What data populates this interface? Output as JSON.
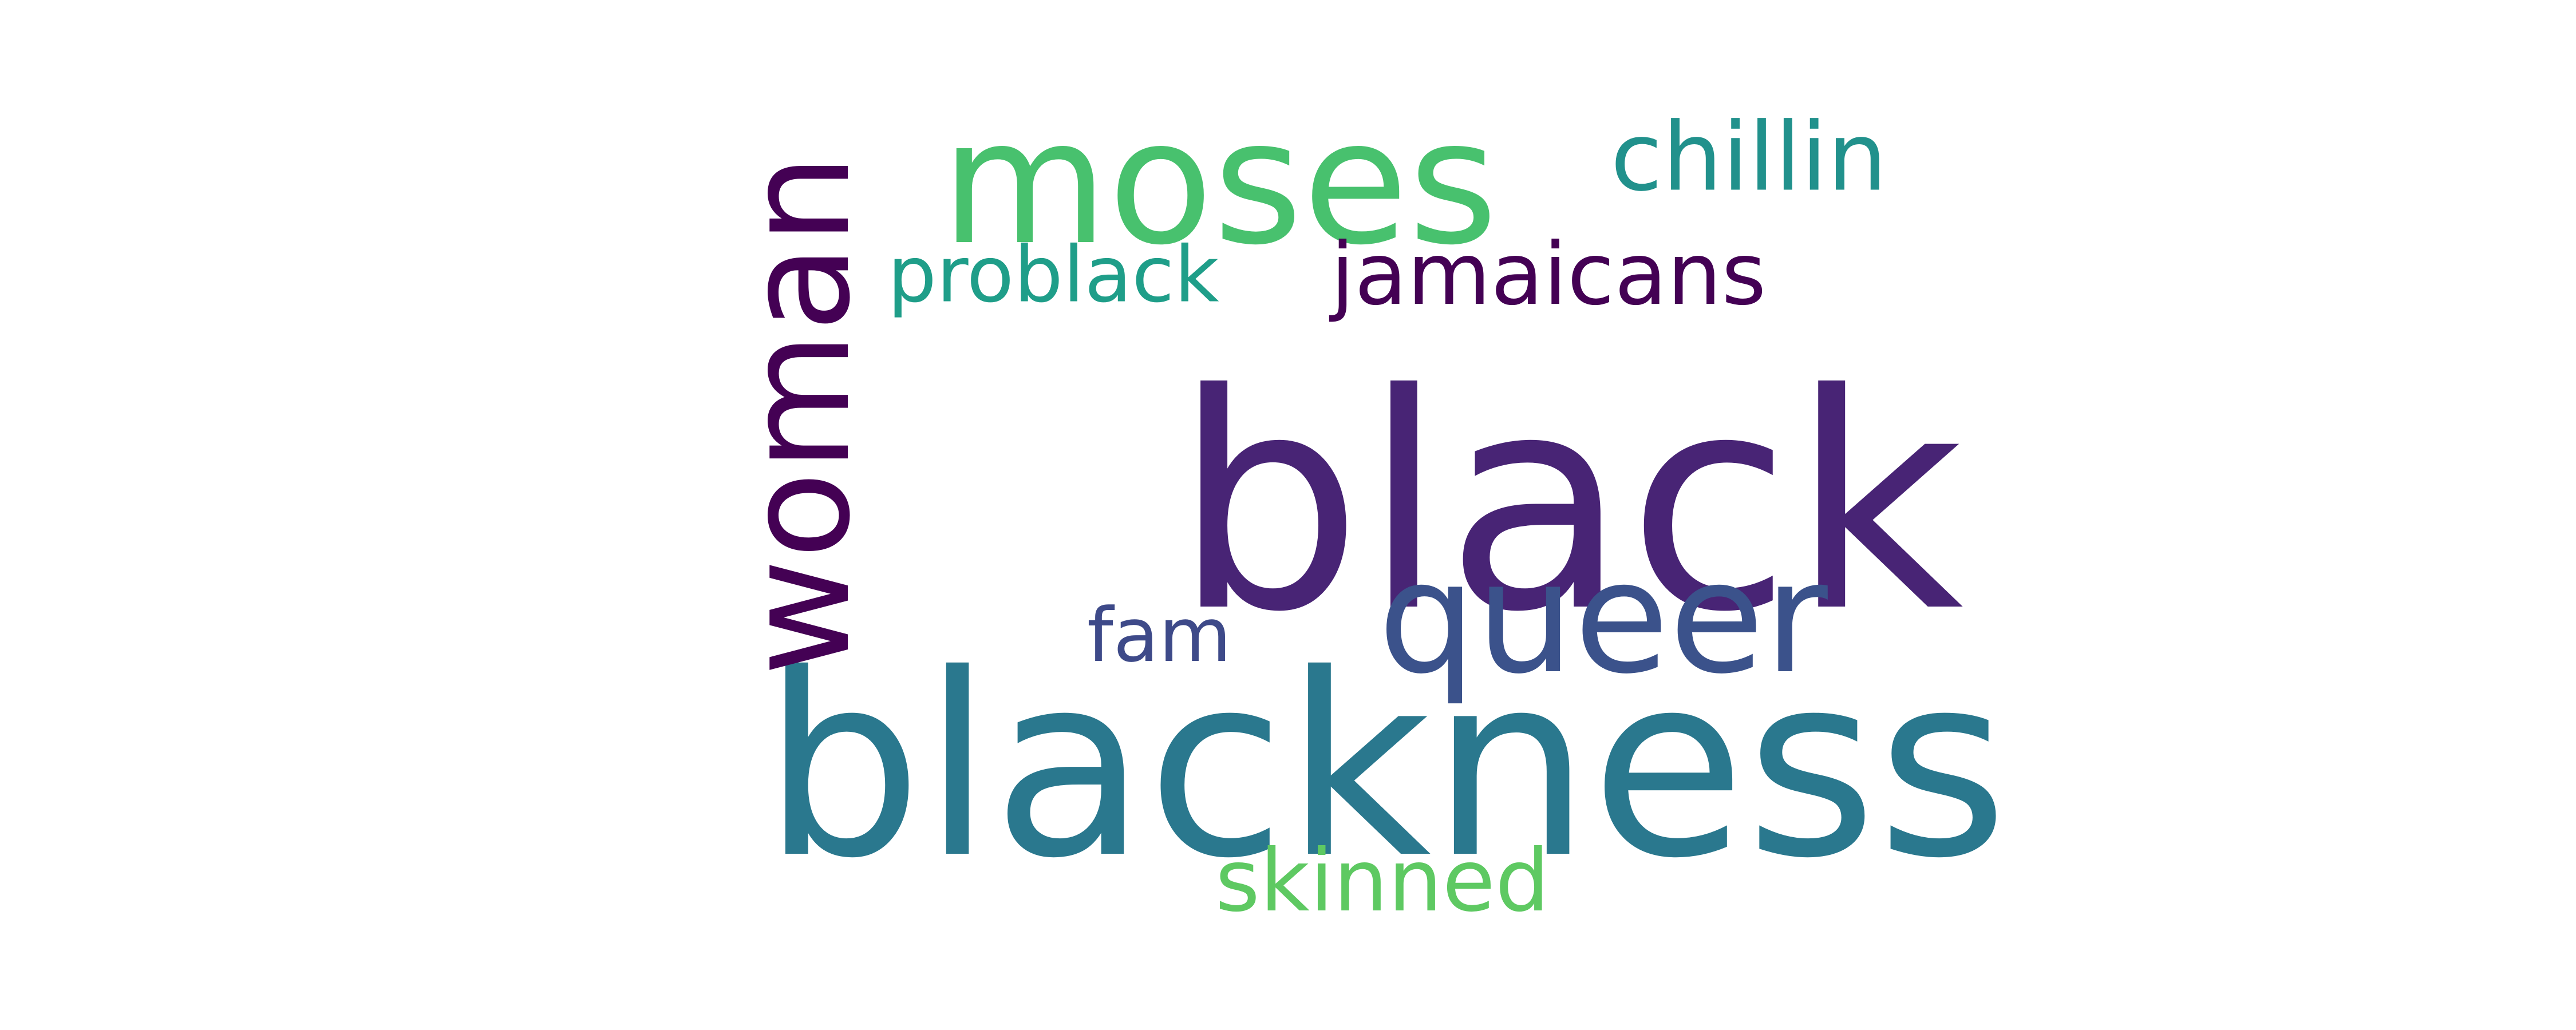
{
  "words": [
    {
      "text": "black",
      "color": "#482475",
      "rotation": 0
    },
    {
      "text": "blackness",
      "color": "#2a788e",
      "rotation": 0
    },
    {
      "text": "woman",
      "color": "#440154",
      "rotation": -90
    },
    {
      "text": "moses",
      "color": "#48c16e",
      "rotation": 0
    },
    {
      "text": "queer",
      "color": "#3b528b",
      "rotation": 0
    },
    {
      "text": "chillin",
      "color": "#21918c",
      "rotation": 0
    },
    {
      "text": "problack",
      "color": "#1f9e89",
      "rotation": 0
    },
    {
      "text": "jamaicans",
      "color": "#440154",
      "rotation": 0
    },
    {
      "text": "fam",
      "color": "#3e4a89",
      "rotation": 0
    },
    {
      "text": "skinned",
      "color": "#5ec962",
      "rotation": 0
    }
  ]
}
